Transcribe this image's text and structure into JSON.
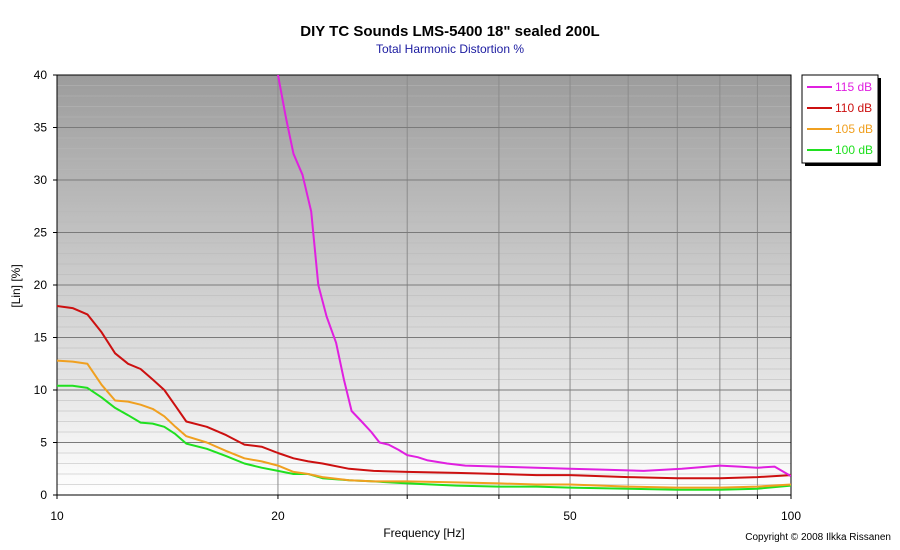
{
  "chart_data": {
    "type": "line",
    "title": "DIY TC Sounds LMS-5400 18\" sealed 200L",
    "subtitle": "Total Harmonic Distortion %",
    "xlabel": "Frequency [Hz]",
    "ylabel": "[Lin] [%]",
    "x_scale": "log",
    "xlim": [
      10,
      100
    ],
    "ylim": [
      0,
      40
    ],
    "x_ticks": [
      10,
      20,
      50,
      100
    ],
    "y_ticks": [
      0,
      5,
      10,
      15,
      20,
      25,
      30,
      35,
      40
    ],
    "grid": true,
    "legend_position": "right",
    "copyright": "Copyright © 2008 Ilkka Rissanen",
    "series": [
      {
        "name": "115 dB",
        "color": "#e020e0",
        "x": [
          20,
          20.5,
          21,
          21.6,
          22.2,
          22.7,
          23.3,
          24,
          24.6,
          25.2,
          26,
          26.8,
          27.5,
          28.3,
          29.2,
          30,
          31,
          32,
          34,
          36,
          40,
          45,
          50,
          56,
          63,
          71,
          80,
          85,
          90,
          95,
          100
        ],
        "values": [
          40,
          36,
          32.5,
          30.5,
          27,
          20,
          17,
          14.5,
          11,
          8,
          7,
          6,
          5,
          4.8,
          4.3,
          3.8,
          3.6,
          3.3,
          3.0,
          2.8,
          2.7,
          2.6,
          2.5,
          2.4,
          2.3,
          2.5,
          2.8,
          2.7,
          2.6,
          2.7,
          1.8
        ]
      },
      {
        "name": "110 dB",
        "color": "#cc1010",
        "x": [
          10,
          10.5,
          11,
          11.5,
          12,
          12.5,
          13,
          13.5,
          14,
          14.5,
          15,
          16,
          17,
          18,
          19,
          20,
          21,
          22,
          23,
          25,
          27,
          30,
          35,
          40,
          45,
          50,
          60,
          70,
          80,
          90,
          100
        ],
        "values": [
          18,
          17.8,
          17.2,
          15.5,
          13.5,
          12.5,
          12,
          11,
          10,
          8.5,
          7,
          6.5,
          5.7,
          4.8,
          4.6,
          4.0,
          3.5,
          3.2,
          3.0,
          2.5,
          2.3,
          2.2,
          2.1,
          2.0,
          1.9,
          1.9,
          1.7,
          1.6,
          1.6,
          1.7,
          1.9
        ]
      },
      {
        "name": "105 dB",
        "color": "#f0a020",
        "x": [
          10,
          10.5,
          11,
          11.5,
          12,
          12.5,
          13,
          13.5,
          14,
          14.5,
          15,
          16,
          17,
          18,
          19,
          20,
          21,
          22,
          23,
          25,
          27,
          30,
          35,
          40,
          45,
          50,
          60,
          70,
          80,
          90,
          100
        ],
        "values": [
          12.8,
          12.7,
          12.5,
          10.5,
          9,
          8.9,
          8.6,
          8.2,
          7.5,
          6.5,
          5.6,
          5.0,
          4.2,
          3.5,
          3.2,
          2.8,
          2.2,
          2.0,
          1.7,
          1.4,
          1.3,
          1.3,
          1.2,
          1.1,
          1.0,
          1.0,
          0.8,
          0.7,
          0.7,
          0.8,
          1.0
        ]
      },
      {
        "name": "100 dB",
        "color": "#20e020",
        "x": [
          10,
          10.5,
          11,
          11.5,
          12,
          12.5,
          13,
          13.5,
          14,
          14.5,
          15,
          16,
          17,
          18,
          19,
          20,
          21,
          22,
          23,
          25,
          27,
          30,
          35,
          40,
          45,
          50,
          60,
          70,
          80,
          90,
          100
        ],
        "values": [
          10.4,
          10.4,
          10.2,
          9.3,
          8.3,
          7.6,
          6.9,
          6.8,
          6.5,
          5.8,
          4.9,
          4.4,
          3.7,
          3.0,
          2.6,
          2.3,
          2.0,
          2.0,
          1.6,
          1.4,
          1.3,
          1.1,
          0.9,
          0.8,
          0.8,
          0.7,
          0.6,
          0.5,
          0.5,
          0.6,
          0.9
        ]
      }
    ]
  }
}
